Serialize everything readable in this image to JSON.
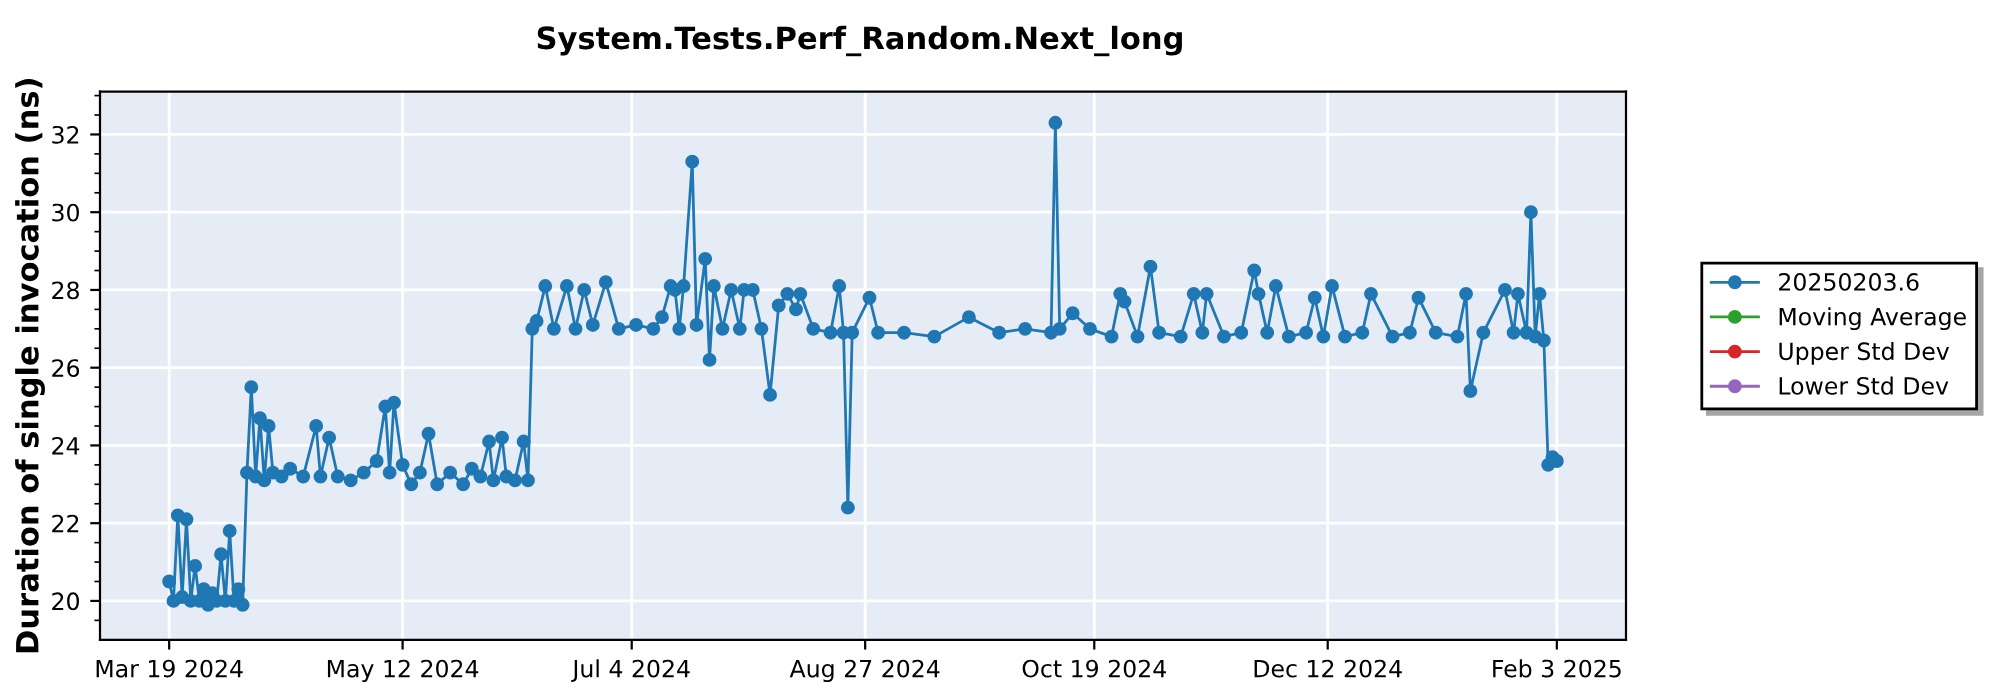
{
  "chart_data": {
    "type": "line",
    "title": "System.Tests.Perf_Random.Next_long",
    "ylabel": "Duration of single invocation (ns)",
    "series": [
      {
        "name": "20250203.6",
        "color": "#1f77b4",
        "x": [
          "2024-03-19",
          "2024-03-20",
          "2024-03-21",
          "2024-03-22",
          "2024-03-23",
          "2024-03-24",
          "2024-03-25",
          "2024-03-26",
          "2024-03-27",
          "2024-03-28",
          "2024-03-29",
          "2024-03-30",
          "2024-03-31",
          "2024-04-01",
          "2024-04-02",
          "2024-04-03",
          "2024-04-04",
          "2024-04-05",
          "2024-04-06",
          "2024-04-07",
          "2024-04-08",
          "2024-04-09",
          "2024-04-10",
          "2024-04-11",
          "2024-04-12",
          "2024-04-14",
          "2024-04-16",
          "2024-04-19",
          "2024-04-22",
          "2024-04-23",
          "2024-04-25",
          "2024-04-27",
          "2024-04-30",
          "2024-05-03",
          "2024-05-06",
          "2024-05-08",
          "2024-05-09",
          "2024-05-10",
          "2024-05-12",
          "2024-05-14",
          "2024-05-16",
          "2024-05-18",
          "2024-05-20",
          "2024-05-23",
          "2024-05-26",
          "2024-05-28",
          "2024-05-30",
          "2024-06-01",
          "2024-06-02",
          "2024-06-04",
          "2024-06-05",
          "2024-06-07",
          "2024-06-09",
          "2024-06-10",
          "2024-06-11",
          "2024-06-12",
          "2024-06-14",
          "2024-06-16",
          "2024-06-19",
          "2024-06-21",
          "2024-06-23",
          "2024-06-25",
          "2024-06-28",
          "2024-07-01",
          "2024-07-05",
          "2024-07-09",
          "2024-07-11",
          "2024-07-13",
          "2024-07-14",
          "2024-07-15",
          "2024-07-16",
          "2024-07-18",
          "2024-07-19",
          "2024-07-21",
          "2024-07-22",
          "2024-07-23",
          "2024-07-25",
          "2024-07-27",
          "2024-07-29",
          "2024-07-30",
          "2024-08-01",
          "2024-08-03",
          "2024-08-05",
          "2024-08-07",
          "2024-08-09",
          "2024-08-11",
          "2024-08-12",
          "2024-08-15",
          "2024-08-19",
          "2024-08-21",
          "2024-08-22",
          "2024-08-23",
          "2024-08-24",
          "2024-08-28",
          "2024-08-30",
          "2024-09-05",
          "2024-09-12",
          "2024-09-20",
          "2024-09-27",
          "2024-10-03",
          "2024-10-09",
          "2024-10-10",
          "2024-10-11",
          "2024-10-14",
          "2024-10-18",
          "2024-10-23",
          "2024-10-25",
          "2024-10-26",
          "2024-10-29",
          "2024-11-01",
          "2024-11-03",
          "2024-11-08",
          "2024-11-11",
          "2024-11-13",
          "2024-11-14",
          "2024-11-18",
          "2024-11-22",
          "2024-11-25",
          "2024-11-26",
          "2024-11-28",
          "2024-11-30",
          "2024-12-03",
          "2024-12-07",
          "2024-12-09",
          "2024-12-11",
          "2024-12-13",
          "2024-12-16",
          "2024-12-20",
          "2024-12-22",
          "2024-12-27",
          "2024-12-31",
          "2025-01-02",
          "2025-01-06",
          "2025-01-11",
          "2025-01-13",
          "2025-01-14",
          "2025-01-17",
          "2025-01-22",
          "2025-01-24",
          "2025-01-25",
          "2025-01-27",
          "2025-01-28",
          "2025-01-29",
          "2025-01-30",
          "2025-01-31",
          "2025-02-01",
          "2025-02-02",
          "2025-02-03"
        ],
        "values": [
          20.5,
          20.0,
          22.2,
          20.1,
          22.1,
          20.0,
          20.9,
          20.0,
          20.3,
          19.9,
          20.2,
          20.0,
          21.2,
          20.0,
          21.8,
          20.0,
          20.3,
          19.9,
          23.3,
          25.5,
          23.2,
          24.7,
          23.1,
          24.5,
          23.3,
          23.2,
          23.4,
          23.2,
          24.5,
          23.2,
          24.2,
          23.2,
          23.1,
          23.3,
          23.6,
          25.0,
          23.3,
          25.1,
          23.5,
          23.0,
          23.3,
          24.3,
          23.0,
          23.3,
          23.0,
          23.4,
          23.2,
          24.1,
          23.1,
          24.2,
          23.2,
          23.1,
          24.1,
          23.1,
          27.0,
          27.2,
          28.1,
          27.0,
          28.1,
          27.0,
          28.0,
          27.1,
          28.2,
          27.0,
          27.1,
          27.0,
          27.3,
          28.1,
          28.0,
          27.0,
          28.1,
          31.3,
          27.1,
          28.8,
          26.2,
          28.1,
          27.0,
          28.0,
          27.0,
          28.0,
          28.0,
          27.0,
          25.3,
          27.6,
          27.9,
          27.5,
          27.9,
          27.0,
          26.9,
          28.1,
          26.9,
          22.4,
          26.9,
          27.8,
          26.9,
          26.9,
          26.8,
          27.3,
          26.9,
          27.0,
          26.9,
          32.3,
          27.0,
          27.4,
          27.0,
          26.8,
          27.9,
          27.7,
          26.8,
          28.6,
          26.9,
          26.8,
          27.9,
          26.9,
          27.9,
          26.8,
          26.9,
          28.5,
          27.9,
          26.9,
          28.1,
          26.8,
          26.9,
          27.8,
          26.8,
          28.1,
          26.8,
          26.9,
          27.9,
          26.8,
          26.9,
          27.8,
          26.9,
          26.8,
          27.9,
          25.4,
          26.9,
          28.0,
          26.9,
          27.9,
          26.9,
          30.0,
          26.8,
          27.9,
          26.7,
          23.5,
          23.7,
          23.6
        ]
      },
      {
        "name": "Moving Average",
        "color": "#2ca02c"
      },
      {
        "name": "Upper Std Dev",
        "color": "#d62728"
      },
      {
        "name": "Lower Std Dev",
        "color": "#9467bd"
      }
    ],
    "xlim": [
      "2024-03-03",
      "2025-02-19"
    ],
    "xticks": [
      {
        "value": "2024-03-19",
        "label": "Mar 19 2024"
      },
      {
        "value": "2024-05-12",
        "label": "May 12 2024"
      },
      {
        "value": "2024-07-04",
        "label": "Jul 4 2024"
      },
      {
        "value": "2024-08-27",
        "label": "Aug 27 2024"
      },
      {
        "value": "2024-10-19",
        "label": "Oct 19 2024"
      },
      {
        "value": "2024-12-12",
        "label": "Dec 12 2024"
      },
      {
        "value": "2025-02-03",
        "label": "Feb 3 2025"
      }
    ],
    "ylim": [
      19,
      33.1
    ],
    "yticks": [
      20,
      22,
      24,
      26,
      28,
      30,
      32,
      {
        "value": 19.5,
        "label": null
      },
      {
        "value": 20.5,
        "label": null
      },
      {
        "value": 21,
        "label": null
      },
      {
        "value": 21.5,
        "label": null
      },
      {
        "value": 22.5,
        "label": null
      },
      {
        "value": 23,
        "label": null
      },
      {
        "value": 23.5,
        "label": null
      },
      {
        "value": 24.5,
        "label": null
      },
      {
        "value": 25,
        "label": null
      },
      {
        "value": 25.5,
        "label": null
      },
      {
        "value": 26.5,
        "label": null
      },
      {
        "value": 27,
        "label": null
      },
      {
        "value": 27.5,
        "label": null
      },
      {
        "value": 28.5,
        "label": null
      },
      {
        "value": 29,
        "label": null
      },
      {
        "value": 29.5,
        "label": null
      },
      {
        "value": 30.5,
        "label": null
      },
      {
        "value": 31,
        "label": null
      },
      {
        "value": 31.5,
        "label": null
      },
      {
        "value": 32.5,
        "label": null
      },
      {
        "value": 33,
        "label": null
      }
    ],
    "grid": true,
    "legend": "right",
    "marker": "circle",
    "line_style": "solid"
  }
}
